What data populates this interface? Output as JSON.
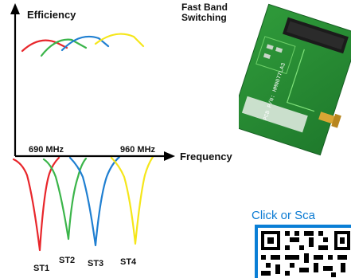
{
  "diagram": {
    "y_axis_label": "Efficiency",
    "x_axis_label": "Frequency",
    "title_line1": "Fast Band",
    "title_line2": "Switching",
    "freq_low": "690 MHz",
    "freq_high": "960 MHz",
    "states": [
      "ST1",
      "ST2",
      "ST3",
      "ST4"
    ],
    "colors": {
      "st1": "#e8262b",
      "st2": "#3bb54a",
      "st3": "#1f7fd1",
      "st4": "#f5e61a",
      "axis": "#000000"
    }
  },
  "cta": {
    "text": "Click or Sca"
  },
  "board": {
    "label": "PCB P/N: HMN077LA3"
  }
}
